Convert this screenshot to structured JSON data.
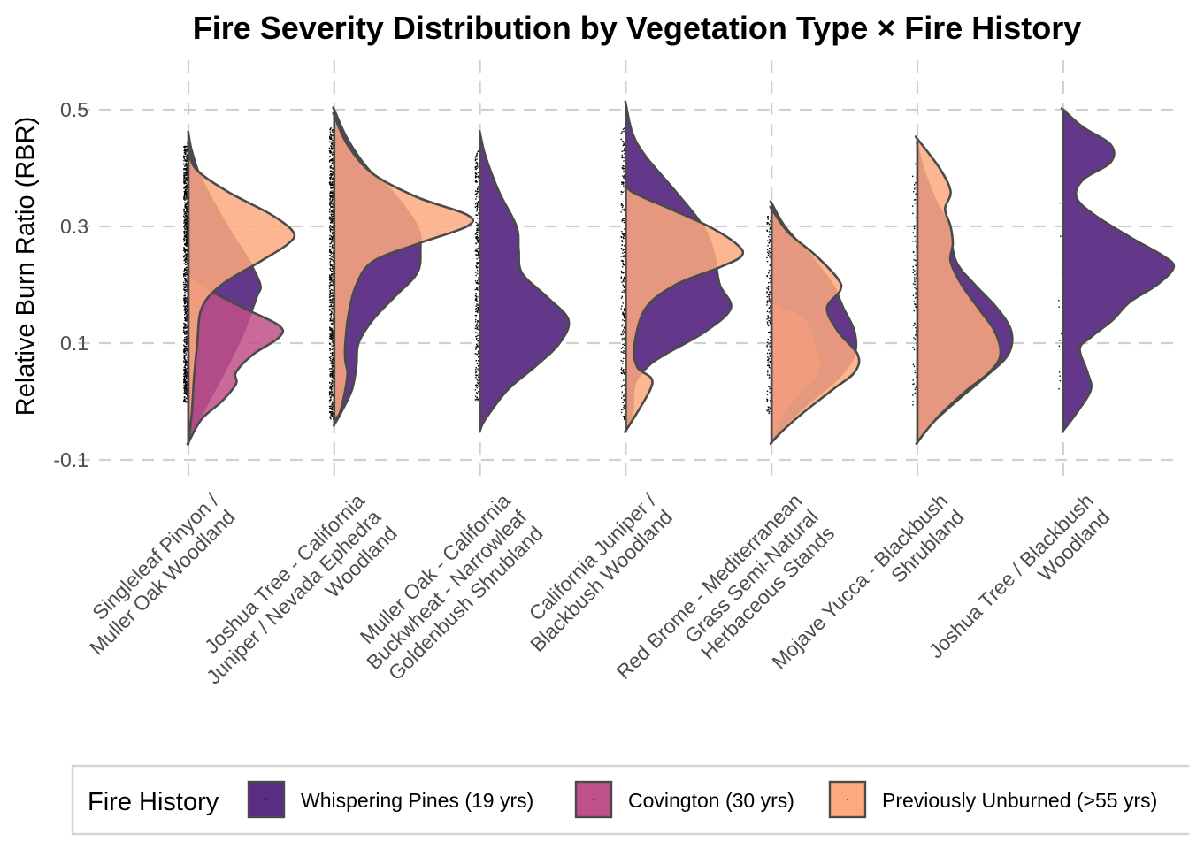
{
  "chart_data": {
    "type": "violin",
    "title": "Fire Severity Distribution by Vegetation Type × Fire History",
    "xlabel": "",
    "ylabel": "Relative Burn Ratio (RBR)",
    "ylim": [
      -0.12,
      0.57
    ],
    "yticks": [
      -0.1,
      0.1,
      0.3,
      0.5
    ],
    "ytick_labels": [
      "-0.1",
      "0.1",
      "0.3",
      "0.5"
    ],
    "grid": true,
    "legend": {
      "title": "Fire History",
      "placement": "bottom",
      "entries": [
        {
          "name": "Whispering Pines (19 yrs)",
          "color": "#5B2C83",
          "opacity": 0.95
        },
        {
          "name": "Covington (30 yrs)",
          "color": "#C0508A",
          "opacity": 0.92
        },
        {
          "name": "Previously Unburned (>55 yrs)",
          "color": "#FCA97E",
          "opacity": 0.92
        }
      ]
    },
    "categories": [
      {
        "label_lines": [
          "Singleleaf Pinyon /",
          "Muller Oak Woodland"
        ]
      },
      {
        "label_lines": [
          "Joshua Tree - California",
          "Juniper / Nevada Ephedra",
          "Woodland"
        ]
      },
      {
        "label_lines": [
          "Muller Oak - California",
          "Buckwheat - Narrowleaf",
          "Goldenbush Shrubland"
        ]
      },
      {
        "label_lines": [
          "California Juniper /",
          "Blackbush Woodland"
        ]
      },
      {
        "label_lines": [
          "Red Brome - Mediterranean",
          "Grass Semi-Natural",
          "Herbaceous Stands"
        ]
      },
      {
        "label_lines": [
          "Mojave Yucca - Blackbush",
          "Shrubland"
        ]
      },
      {
        "label_lines": [
          "Joshua Tree / Blackbush",
          "Woodland"
        ]
      }
    ],
    "series": [
      {
        "name": "Whispering Pines (19 yrs)",
        "violins": [
          {
            "category": 0,
            "density": [
              [
                0.46,
                0
              ],
              [
                0.43,
                0.03
              ],
              [
                0.38,
                0.12
              ],
              [
                0.3,
                0.35
              ],
              [
                0.24,
                0.55
              ],
              [
                0.2,
                0.65
              ],
              [
                0.18,
                0.62
              ],
              [
                0.12,
                0.5
              ],
              [
                0.06,
                0.35
              ],
              [
                0.0,
                0.18
              ],
              [
                -0.05,
                0.05
              ],
              [
                -0.07,
                0
              ]
            ]
          },
          {
            "category": 1,
            "density": [
              [
                0.5,
                0
              ],
              [
                0.45,
                0.12
              ],
              [
                0.4,
                0.3
              ],
              [
                0.36,
                0.52
              ],
              [
                0.3,
                0.75
              ],
              [
                0.26,
                0.78
              ],
              [
                0.22,
                0.75
              ],
              [
                0.18,
                0.55
              ],
              [
                0.14,
                0.35
              ],
              [
                0.1,
                0.22
              ],
              [
                0.06,
                0.2
              ],
              [
                0.02,
                0.16
              ],
              [
                -0.02,
                0.06
              ],
              [
                -0.04,
                0
              ]
            ]
          },
          {
            "category": 2,
            "density": [
              [
                0.46,
                0
              ],
              [
                0.42,
                0.05
              ],
              [
                0.36,
                0.17
              ],
              [
                0.3,
                0.33
              ],
              [
                0.26,
                0.35
              ],
              [
                0.22,
                0.38
              ],
              [
                0.18,
                0.6
              ],
              [
                0.14,
                0.8
              ],
              [
                0.1,
                0.72
              ],
              [
                0.06,
                0.5
              ],
              [
                0.02,
                0.25
              ],
              [
                -0.03,
                0.05
              ],
              [
                -0.05,
                0
              ]
            ]
          },
          {
            "category": 3,
            "density": [
              [
                0.51,
                0
              ],
              [
                0.46,
                0.06
              ],
              [
                0.42,
                0.18
              ],
              [
                0.36,
                0.45
              ],
              [
                0.3,
                0.7
              ],
              [
                0.25,
                0.8
              ],
              [
                0.2,
                0.85
              ],
              [
                0.16,
                0.95
              ],
              [
                0.12,
                0.72
              ],
              [
                0.08,
                0.35
              ],
              [
                0.06,
                0.2
              ],
              [
                0.03,
                0.08
              ],
              [
                -0.02,
                0.06
              ],
              [
                -0.05,
                0
              ]
            ]
          },
          {
            "category": 4,
            "density": [
              [
                0.34,
                0
              ],
              [
                0.3,
                0.12
              ],
              [
                0.25,
                0.35
              ],
              [
                0.2,
                0.55
              ],
              [
                0.16,
                0.65
              ],
              [
                0.12,
                0.75
              ],
              [
                0.08,
                0.75
              ],
              [
                0.04,
                0.6
              ],
              [
                0.0,
                0.35
              ],
              [
                -0.04,
                0.12
              ],
              [
                -0.07,
                0
              ]
            ]
          },
          {
            "category": 5,
            "density": [
              [
                0.44,
                0
              ],
              [
                0.4,
                0.05
              ],
              [
                0.35,
                0.15
              ],
              [
                0.3,
                0.28
              ],
              [
                0.24,
                0.35
              ],
              [
                0.2,
                0.52
              ],
              [
                0.16,
                0.72
              ],
              [
                0.12,
                0.85
              ],
              [
                0.08,
                0.82
              ],
              [
                0.04,
                0.6
              ],
              [
                0.0,
                0.35
              ],
              [
                -0.04,
                0.12
              ],
              [
                -0.07,
                0
              ]
            ]
          },
          {
            "category": 6,
            "density": [
              [
                0.5,
                0
              ],
              [
                0.47,
                0.18
              ],
              [
                0.44,
                0.43
              ],
              [
                0.41,
                0.43
              ],
              [
                0.38,
                0.18
              ],
              [
                0.35,
                0.12
              ],
              [
                0.32,
                0.28
              ],
              [
                0.28,
                0.62
              ],
              [
                0.25,
                0.9
              ],
              [
                0.23,
                1.0
              ],
              [
                0.2,
                0.85
              ],
              [
                0.17,
                0.6
              ],
              [
                0.14,
                0.45
              ],
              [
                0.11,
                0.25
              ],
              [
                0.09,
                0.15
              ],
              [
                0.05,
                0.22
              ],
              [
                0.02,
                0.25
              ],
              [
                -0.02,
                0.12
              ],
              [
                -0.05,
                0
              ]
            ]
          }
        ]
      },
      {
        "name": "Covington (30 yrs)",
        "violins": [
          {
            "category": 0,
            "density": [
              [
                0.22,
                0
              ],
              [
                0.19,
                0.2
              ],
              [
                0.16,
                0.5
              ],
              [
                0.13,
                0.82
              ],
              [
                0.11,
                0.82
              ],
              [
                0.08,
                0.58
              ],
              [
                0.05,
                0.43
              ],
              [
                0.03,
                0.43
              ],
              [
                0.0,
                0.3
              ],
              [
                -0.03,
                0.12
              ],
              [
                -0.07,
                0
              ]
            ]
          },
          {
            "category": 4,
            "density": [
              [
                0.17,
                0
              ],
              [
                0.15,
                0.25
              ],
              [
                0.13,
                0.35
              ],
              [
                0.1,
                0.4
              ],
              [
                0.07,
                0.45
              ],
              [
                0.04,
                0.42
              ],
              [
                0.02,
                0.3
              ],
              [
                -0.02,
                0.13
              ],
              [
                -0.05,
                0.05
              ],
              [
                -0.07,
                0
              ]
            ]
          }
        ]
      },
      {
        "name": "Previously Unburned (>55 yrs)",
        "violins": [
          {
            "category": 0,
            "density": [
              [
                0.44,
                0
              ],
              [
                0.4,
                0.06
              ],
              [
                0.36,
                0.35
              ],
              [
                0.32,
                0.75
              ],
              [
                0.29,
                0.95
              ],
              [
                0.27,
                0.9
              ],
              [
                0.24,
                0.65
              ],
              [
                0.2,
                0.3
              ],
              [
                0.16,
                0.12
              ],
              [
                0.1,
                0.08
              ],
              [
                0.04,
                0.05
              ],
              [
                -0.02,
                0.03
              ],
              [
                -0.07,
                0
              ]
            ]
          },
          {
            "category": 1,
            "density": [
              [
                0.49,
                0
              ],
              [
                0.44,
                0.12
              ],
              [
                0.39,
                0.35
              ],
              [
                0.35,
                0.75
              ],
              [
                0.32,
                1.2
              ],
              [
                0.3,
                1.2
              ],
              [
                0.27,
                0.75
              ],
              [
                0.24,
                0.35
              ],
              [
                0.2,
                0.2
              ],
              [
                0.15,
                0.13
              ],
              [
                0.1,
                0.1
              ],
              [
                0.07,
                0.1
              ],
              [
                0.05,
                0.12
              ],
              [
                0.02,
                0.1
              ],
              [
                -0.02,
                0.05
              ],
              [
                -0.03,
                0
              ]
            ]
          },
          {
            "category": 3,
            "density": [
              [
                0.38,
                0
              ],
              [
                0.36,
                0.05
              ],
              [
                0.33,
                0.4
              ],
              [
                0.3,
                0.75
              ],
              [
                0.27,
                1.0
              ],
              [
                0.25,
                1.05
              ],
              [
                0.23,
                0.85
              ],
              [
                0.2,
                0.45
              ],
              [
                0.16,
                0.18
              ],
              [
                0.1,
                0.08
              ],
              [
                0.06,
                0.1
              ],
              [
                0.04,
                0.23
              ],
              [
                0.02,
                0.22
              ],
              [
                -0.02,
                0.1
              ],
              [
                -0.05,
                0
              ]
            ]
          },
          {
            "category": 4,
            "density": [
              [
                0.33,
                0
              ],
              [
                0.29,
                0.15
              ],
              [
                0.25,
                0.4
              ],
              [
                0.21,
                0.6
              ],
              [
                0.19,
                0.62
              ],
              [
                0.16,
                0.5
              ],
              [
                0.12,
                0.6
              ],
              [
                0.08,
                0.78
              ],
              [
                0.05,
                0.75
              ],
              [
                0.02,
                0.55
              ],
              [
                -0.02,
                0.28
              ],
              [
                -0.05,
                0.1
              ],
              [
                -0.07,
                0
              ]
            ]
          },
          {
            "category": 5,
            "density": [
              [
                0.45,
                0
              ],
              [
                0.4,
                0.2
              ],
              [
                0.36,
                0.3
              ],
              [
                0.33,
                0.25
              ],
              [
                0.3,
                0.3
              ],
              [
                0.27,
                0.32
              ],
              [
                0.24,
                0.3
              ],
              [
                0.2,
                0.4
              ],
              [
                0.16,
                0.55
              ],
              [
                0.12,
                0.7
              ],
              [
                0.08,
                0.75
              ],
              [
                0.05,
                0.65
              ],
              [
                0.02,
                0.45
              ],
              [
                -0.02,
                0.22
              ],
              [
                -0.05,
                0.08
              ],
              [
                -0.07,
                0
              ]
            ]
          }
        ]
      }
    ],
    "raw_points_shown": true
  }
}
